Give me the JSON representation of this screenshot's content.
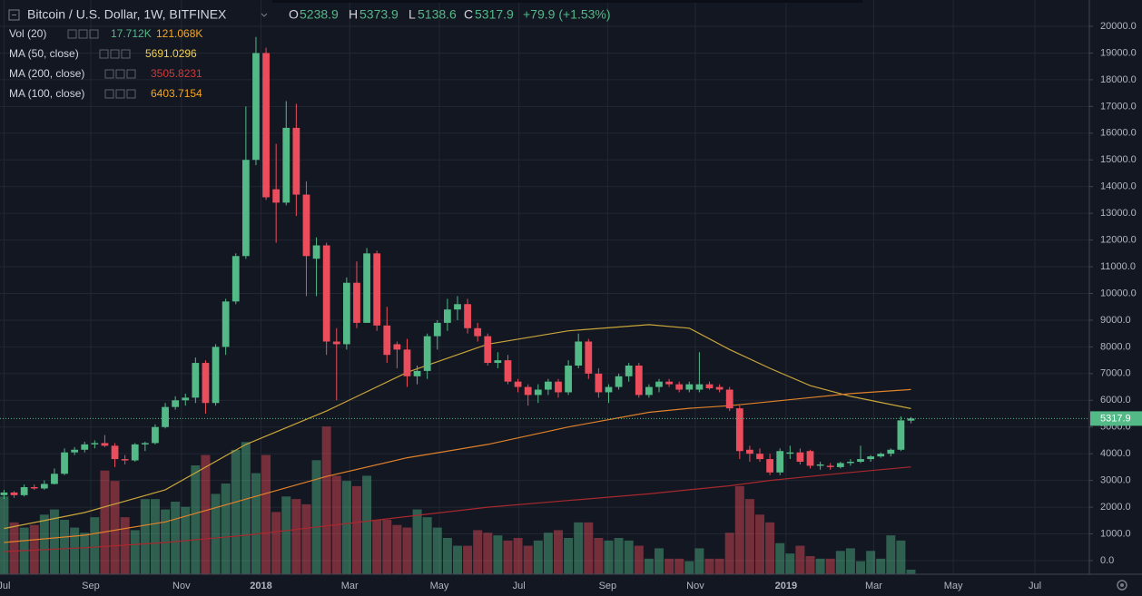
{
  "header": {
    "symbol": "Bitcoin / U.S. Dollar, 1W, BITFINEX",
    "ohlc_labels": [
      "O",
      "H",
      "L",
      "C"
    ],
    "change": "+79.9 (+1.53%)"
  },
  "legend": {
    "volume": {
      "name": "Vol (20)",
      "values": [
        "17.712K",
        "121.068K"
      ]
    }
  },
  "chart_data": {
    "type": "candlestick",
    "xlim": [
      -0.4,
      107.7
    ],
    "xticks": [
      {
        "value": 0,
        "label": "Jul"
      },
      {
        "value": 8.6,
        "label": "Sep"
      },
      {
        "value": 17.6,
        "label": "Nov"
      },
      {
        "value": 25.5,
        "label": "2018"
      },
      {
        "value": 34.3,
        "label": "Mar"
      },
      {
        "value": 43.2,
        "label": "May"
      },
      {
        "value": 51.1,
        "label": "Jul"
      },
      {
        "value": 59.9,
        "label": "Sep"
      },
      {
        "value": 68.6,
        "label": "Nov"
      },
      {
        "value": 77.6,
        "label": "2019"
      },
      {
        "value": 86.3,
        "label": "Mar"
      },
      {
        "value": 94.2,
        "label": "May"
      },
      {
        "value": 102.3,
        "label": "Jul"
      }
    ],
    "ylim": [
      -510,
      20985
    ],
    "yticks": [
      {
        "value": 0,
        "label": "0.0"
      },
      {
        "value": 1000,
        "label": "1000.0"
      },
      {
        "value": 2000,
        "label": "2000.0"
      },
      {
        "value": 3000,
        "label": "3000.0"
      },
      {
        "value": 4000,
        "label": "4000.0"
      },
      {
        "value": 5000,
        "label": "5000.0"
      },
      {
        "value": 6000,
        "label": "6000.0"
      },
      {
        "value": 7000,
        "label": "7000.0"
      },
      {
        "value": 8000,
        "label": "8000.0"
      },
      {
        "value": 9000,
        "label": "9000.0"
      },
      {
        "value": 10000,
        "label": "10000.0"
      },
      {
        "value": 11000,
        "label": "11000.0"
      },
      {
        "value": 12000,
        "label": "12000.0"
      },
      {
        "value": 13000,
        "label": "13000.0"
      },
      {
        "value": 14000,
        "label": "14000.0"
      },
      {
        "value": 15000,
        "label": "15000.0"
      },
      {
        "value": 16000,
        "label": "16000.0"
      },
      {
        "value": 17000,
        "label": "17000.0"
      },
      {
        "value": 18000,
        "label": "18000.0"
      },
      {
        "value": 19000,
        "label": "19000.0"
      },
      {
        "value": 20000,
        "label": "20000.0"
      }
    ],
    "y2lim": [
      0,
      700
    ],
    "grid": true,
    "up_color": "#53b987",
    "down_color": "#eb4d5c",
    "candles": {
      "open": [
        2450,
        2550,
        2450,
        2750,
        2700,
        2870,
        3250,
        4050,
        4150,
        4350,
        4400,
        4300,
        3800,
        3750,
        4350,
        4400,
        5000,
        5750,
        6000,
        6100,
        7400,
        5900,
        8000,
        9700,
        11400,
        15000,
        19000,
        13900,
        13400,
        16200,
        13700,
        11300,
        11800,
        8200,
        8100,
        10400,
        8900,
        11500,
        8800,
        8100,
        7900,
        6900,
        7100,
        8400,
        8900,
        9400,
        9600,
        8700,
        8400,
        7400,
        7500,
        6700,
        6500,
        6200,
        6400,
        6700,
        6300,
        7300,
        8200,
        7000,
        6300,
        6500,
        6900,
        7300,
        6200,
        6500,
        6700,
        6600,
        6400,
        6400,
        6600,
        6500,
        6400,
        5700,
        4150,
        4000,
        3800,
        3300,
        4000,
        4050,
        4100,
        3550,
        3550,
        3500,
        3650,
        3700,
        3800,
        3900,
        4000,
        4150,
        5238.9
      ],
      "high": [
        2650,
        2600,
        2850,
        2850,
        3000,
        3450,
        4200,
        4250,
        4450,
        4500,
        4700,
        4400,
        3950,
        4400,
        4450,
        5100,
        5900,
        6150,
        6250,
        7600,
        7500,
        8100,
        9800,
        11500,
        17000,
        19600,
        19200,
        15600,
        17200,
        17100,
        14200,
        12100,
        11900,
        8700,
        10600,
        11200,
        11700,
        11600,
        9500,
        8200,
        8300,
        7300,
        8500,
        9000,
        9800,
        9900,
        9800,
        8900,
        8500,
        7800,
        7700,
        6800,
        6600,
        6600,
        6800,
        6800,
        7500,
        8500,
        8300,
        7200,
        6600,
        7000,
        7400,
        7400,
        6600,
        6800,
        6800,
        6700,
        6700,
        7800,
        6700,
        6600,
        6500,
        5800,
        4300,
        4200,
        4000,
        4200,
        4300,
        4200,
        4150,
        3700,
        3650,
        3700,
        3800,
        4300,
        3950,
        4050,
        4200,
        5400,
        5373.9
      ],
      "low": [
        2300,
        2350,
        2400,
        2650,
        2650,
        2850,
        3200,
        3950,
        4050,
        4200,
        4250,
        3500,
        3600,
        3700,
        4100,
        4350,
        4950,
        5650,
        5800,
        5900,
        5500,
        5800,
        7700,
        9600,
        11300,
        14800,
        13500,
        11900,
        13300,
        12900,
        9900,
        9900,
        7700,
        6000,
        7900,
        8700,
        8900,
        8600,
        7400,
        7200,
        6500,
        6600,
        6800,
        7900,
        8600,
        9000,
        8500,
        8200,
        7300,
        7200,
        6600,
        6300,
        5800,
        5900,
        6200,
        6100,
        6200,
        7200,
        6800,
        6100,
        5900,
        6400,
        6700,
        6100,
        6100,
        6300,
        6500,
        6300,
        6300,
        6300,
        6400,
        6300,
        5600,
        3800,
        3700,
        3700,
        3200,
        3200,
        3800,
        3600,
        3450,
        3400,
        3400,
        3450,
        3550,
        3650,
        3700,
        3850,
        3900,
        4100,
        5138.6
      ],
      "close": [
        2550,
        2450,
        2750,
        2700,
        2870,
        3250,
        4050,
        4150,
        4350,
        4400,
        4300,
        3800,
        3750,
        4350,
        4400,
        5000,
        5750,
        6000,
        6100,
        7400,
        5900,
        8000,
        9700,
        11400,
        15000,
        19000,
        13600,
        13400,
        16200,
        13700,
        11400,
        11800,
        8200,
        8100,
        10400,
        8900,
        11500,
        8800,
        7700,
        7900,
        6900,
        7100,
        8400,
        8900,
        9400,
        9600,
        8700,
        8400,
        7400,
        7500,
        6700,
        6500,
        6200,
        6400,
        6700,
        6300,
        7300,
        8200,
        7000,
        6300,
        6500,
        6900,
        7300,
        6200,
        6500,
        6700,
        6600,
        6400,
        6600,
        6600,
        6450,
        6400,
        5700,
        4100,
        4000,
        3800,
        3300,
        4100,
        4050,
        3700,
        3550,
        3600,
        3500,
        3650,
        3700,
        3800,
        3900,
        4000,
        4150,
        5250,
        5317.9
      ]
    },
    "volume": {
      "axis": "y2",
      "values": [
        300,
        200,
        180,
        190,
        230,
        250,
        210,
        180,
        160,
        220,
        400,
        360,
        220,
        170,
        290,
        290,
        250,
        280,
        260,
        420,
        460,
        310,
        350,
        480,
        510,
        390,
        460,
        240,
        300,
        290,
        270,
        440,
        570,
        380,
        360,
        340,
        380,
        210,
        210,
        190,
        180,
        250,
        220,
        180,
        140,
        110,
        110,
        170,
        160,
        150,
        130,
        140,
        110,
        130,
        160,
        170,
        140,
        200,
        200,
        140,
        130,
        140,
        130,
        110,
        60,
        100,
        60,
        60,
        50,
        100,
        60,
        60,
        160,
        340,
        290,
        230,
        200,
        120,
        80,
        110,
        70,
        60,
        60,
        90,
        100,
        50,
        90,
        60,
        150,
        130,
        17.712
      ]
    },
    "series": [
      {
        "name": "MA (50, close)",
        "color": "#c9a53a",
        "label_color": "#f0d050",
        "x": [
          0,
          8,
          16,
          24,
          32,
          40,
          48,
          56,
          64,
          68,
          72,
          76,
          80,
          84,
          90
        ],
        "values": [
          1200,
          1800,
          2650,
          4350,
          5600,
          7050,
          8100,
          8600,
          8830,
          8700,
          7900,
          7200,
          6550,
          6150,
          5691.0296
        ]
      },
      {
        "name": "MA (200, close)",
        "color": "#a8282e",
        "label_color": "#d03a3a",
        "x": [
          0,
          8,
          16,
          24,
          32,
          40,
          48,
          56,
          64,
          68,
          72,
          76,
          80,
          84,
          90
        ],
        "values": [
          340,
          480,
          680,
          950,
          1300,
          1650,
          2000,
          2250,
          2500,
          2650,
          2800,
          3000,
          3150,
          3300,
          3505.8231
        ]
      },
      {
        "name": "MA (100, close)",
        "color": "#e0822a",
        "label_color": "#f5a623",
        "x": [
          0,
          8,
          16,
          24,
          32,
          40,
          48,
          56,
          64,
          68,
          72,
          76,
          80,
          84,
          90
        ],
        "values": [
          680,
          950,
          1450,
          2300,
          3150,
          3850,
          4350,
          5000,
          5550,
          5700,
          5800,
          5950,
          6100,
          6250,
          6403.7154
        ]
      }
    ]
  }
}
